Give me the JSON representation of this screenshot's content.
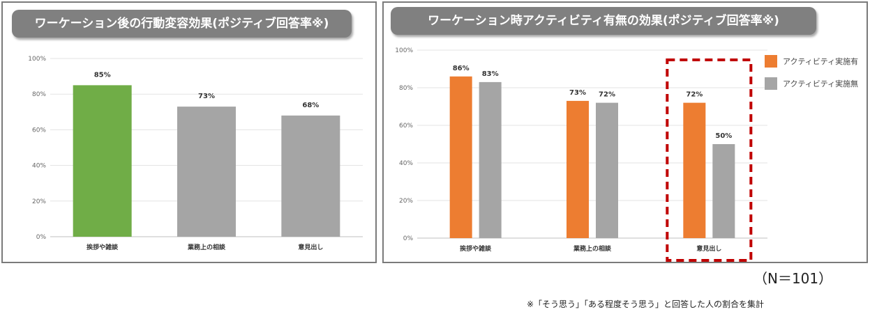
{
  "chart_data": [
    {
      "type": "bar",
      "title": "ワーケーション後の行動変容効果(ポジティブ回答率※)",
      "categories": [
        "挨拶や雑談",
        "業務上の相談",
        "意見出し"
      ],
      "values": [
        85,
        73,
        68
      ],
      "value_labels": [
        "85%",
        "73%",
        "68%"
      ],
      "bar_colors": [
        "#70ad47",
        "#a5a5a5",
        "#a5a5a5"
      ],
      "ylim": [
        0,
        100
      ],
      "yticks": [
        0,
        20,
        40,
        60,
        80,
        100
      ],
      "ytick_labels": [
        "0%",
        "20%",
        "40%",
        "60%",
        "80%",
        "100%"
      ],
      "grid": true
    },
    {
      "type": "bar",
      "title": "ワーケーション時アクティビティ有無の効果(ポジティブ回答率※)",
      "categories": [
        "挨拶や雑談",
        "業務上の相談",
        "意見出し"
      ],
      "series": [
        {
          "name": "アクティビティ実施有",
          "color": "#ed7d31",
          "values": [
            86,
            73,
            72
          ],
          "value_labels": [
            "86%",
            "73%",
            "72%"
          ]
        },
        {
          "name": "アクティビティ実施無",
          "color": "#a5a5a5",
          "values": [
            83,
            72,
            50
          ],
          "value_labels": [
            "83%",
            "72%",
            "50%"
          ]
        }
      ],
      "ylim": [
        0,
        100
      ],
      "yticks": [
        0,
        20,
        40,
        60,
        80,
        100
      ],
      "ytick_labels": [
        "0%",
        "20%",
        "40%",
        "60%",
        "80%",
        "100%"
      ],
      "grid": true,
      "legend_position": "top-right",
      "highlight_category": "意見出し",
      "highlight_color": "#c00000"
    }
  ],
  "sample_size": "（N＝101）",
  "footnote": "※「そう思う」「ある程度そう思う」と回答した人の割合を集計"
}
